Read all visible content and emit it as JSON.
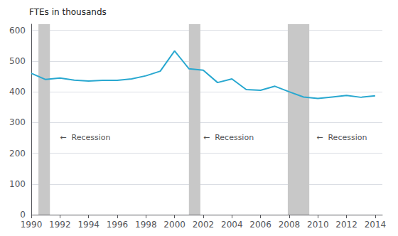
{
  "chart_data": {
    "type": "line",
    "title": "FTEs in thousands",
    "x": [
      1990,
      1991,
      1992,
      1993,
      1994,
      1995,
      1996,
      1997,
      1998,
      1999,
      2000,
      2001,
      2002,
      2003,
      2004,
      2005,
      2006,
      2007,
      2008,
      2009,
      2010,
      2011,
      2012,
      2013,
      2014
    ],
    "values": [
      460,
      440,
      445,
      438,
      435,
      437,
      437,
      442,
      452,
      467,
      533,
      475,
      470,
      430,
      442,
      407,
      405,
      418,
      400,
      383,
      378,
      383,
      388,
      382,
      387
    ],
    "color": "#29a8d0",
    "xlim": [
      1990,
      2014.5
    ],
    "ylim": [
      0,
      620
    ],
    "xticks": [
      1990,
      1992,
      1994,
      1996,
      1998,
      2000,
      2002,
      2004,
      2006,
      2008,
      2010,
      2012,
      2014
    ],
    "yticks": [
      0,
      100,
      200,
      300,
      400,
      500,
      600
    ],
    "grid": true,
    "recessions": [
      [
        1990.5,
        1991.3
      ],
      [
        2001.0,
        2001.8
      ],
      [
        2007.9,
        2009.4
      ]
    ],
    "recession_color": "#c8c8c8",
    "annotations": [
      {
        "x": 1992.0,
        "y": 252,
        "text": "←  Recession"
      },
      {
        "x": 2002.0,
        "y": 252,
        "text": "←  Recession"
      },
      {
        "x": 2009.9,
        "y": 252,
        "text": "←  Recession"
      }
    ]
  }
}
